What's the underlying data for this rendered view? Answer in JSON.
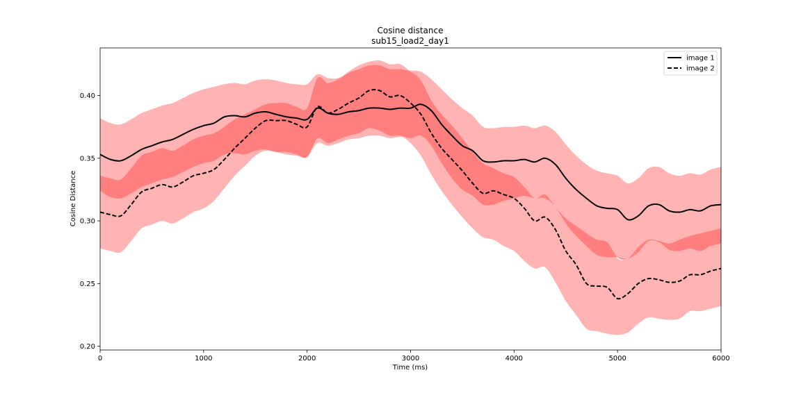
{
  "chart_data": {
    "type": "line",
    "title": "Cosine distance",
    "subtitle": "sub15_load2_day1",
    "xlabel": "Time (ms)",
    "ylabel": "Cosine Distance",
    "xlim": [
      0,
      6000
    ],
    "ylim": [
      0.197,
      0.438
    ],
    "xticks": [
      0,
      1000,
      2000,
      3000,
      4000,
      5000,
      6000
    ],
    "yticks": [
      0.2,
      0.25,
      0.3,
      0.35,
      0.4
    ],
    "ytick_labels": [
      "0.20",
      "0.25",
      "0.30",
      "0.35",
      "0.40"
    ],
    "grid": false,
    "legend_position": "top-right",
    "colors": {
      "outer_band": "#ffb3b3",
      "inner_band": "#ff7f7f",
      "line": "#000000"
    },
    "x": [
      0,
      100,
      200,
      300,
      400,
      500,
      600,
      700,
      800,
      900,
      1000,
      1100,
      1200,
      1300,
      1400,
      1500,
      1600,
      1700,
      1800,
      1900,
      2000,
      2100,
      2200,
      2300,
      2400,
      2500,
      2600,
      2700,
      2800,
      2900,
      3000,
      3100,
      3200,
      3300,
      3400,
      3500,
      3600,
      3700,
      3800,
      3900,
      4000,
      4100,
      4200,
      4300,
      4400,
      4500,
      4600,
      4700,
      4800,
      4900,
      5000,
      5100,
      5200,
      5300,
      5400,
      5500,
      5600,
      5700,
      5800,
      5900,
      6000
    ],
    "series": [
      {
        "name": "image 1",
        "style": "solid",
        "values": [
          0.353,
          0.349,
          0.348,
          0.352,
          0.357,
          0.36,
          0.363,
          0.365,
          0.369,
          0.373,
          0.376,
          0.378,
          0.383,
          0.384,
          0.383,
          0.386,
          0.387,
          0.385,
          0.383,
          0.382,
          0.381,
          0.39,
          0.386,
          0.385,
          0.387,
          0.388,
          0.39,
          0.39,
          0.389,
          0.39,
          0.39,
          0.393,
          0.388,
          0.377,
          0.368,
          0.36,
          0.356,
          0.348,
          0.347,
          0.348,
          0.348,
          0.349,
          0.347,
          0.35,
          0.345,
          0.334,
          0.325,
          0.318,
          0.312,
          0.31,
          0.309,
          0.301,
          0.304,
          0.312,
          0.313,
          0.308,
          0.307,
          0.309,
          0.308,
          0.312,
          0.313
        ],
        "band": {
          "outer_lower": [
            0.324,
            0.319,
            0.318,
            0.322,
            0.327,
            0.33,
            0.333,
            0.335,
            0.339,
            0.343,
            0.346,
            0.348,
            0.353,
            0.354,
            0.353,
            0.356,
            0.357,
            0.355,
            0.353,
            0.352,
            0.351,
            0.362,
            0.36,
            0.362,
            0.365,
            0.366,
            0.368,
            0.368,
            0.366,
            0.367,
            0.366,
            0.368,
            0.36,
            0.346,
            0.334,
            0.325,
            0.32,
            0.313,
            0.313,
            0.316,
            0.318,
            0.32,
            0.318,
            0.318,
            0.311,
            0.298,
            0.288,
            0.28,
            0.273,
            0.271,
            0.271,
            0.27,
            0.275,
            0.284,
            0.283,
            0.277,
            0.276,
            0.278,
            0.276,
            0.28,
            0.282
          ],
          "outer_upper": [
            0.382,
            0.378,
            0.377,
            0.381,
            0.386,
            0.389,
            0.392,
            0.394,
            0.398,
            0.402,
            0.405,
            0.407,
            0.409,
            0.41,
            0.409,
            0.412,
            0.413,
            0.412,
            0.41,
            0.409,
            0.409,
            0.417,
            0.414,
            0.414,
            0.418,
            0.421,
            0.424,
            0.424,
            0.421,
            0.421,
            0.42,
            0.419,
            0.413,
            0.405,
            0.397,
            0.39,
            0.384,
            0.375,
            0.374,
            0.375,
            0.375,
            0.376,
            0.374,
            0.376,
            0.371,
            0.361,
            0.352,
            0.345,
            0.34,
            0.338,
            0.336,
            0.33,
            0.334,
            0.342,
            0.343,
            0.338,
            0.336,
            0.338,
            0.337,
            0.341,
            0.343
          ]
        }
      },
      {
        "name": "image 2",
        "style": "dashed",
        "values": [
          0.307,
          0.305,
          0.304,
          0.313,
          0.323,
          0.326,
          0.329,
          0.327,
          0.331,
          0.336,
          0.338,
          0.341,
          0.349,
          0.358,
          0.366,
          0.374,
          0.38,
          0.38,
          0.38,
          0.377,
          0.375,
          0.391,
          0.386,
          0.389,
          0.394,
          0.398,
          0.404,
          0.404,
          0.399,
          0.4,
          0.394,
          0.385,
          0.37,
          0.358,
          0.349,
          0.34,
          0.33,
          0.322,
          0.324,
          0.321,
          0.318,
          0.31,
          0.3,
          0.303,
          0.293,
          0.276,
          0.265,
          0.25,
          0.248,
          0.247,
          0.238,
          0.242,
          0.25,
          0.254,
          0.253,
          0.251,
          0.252,
          0.257,
          0.257,
          0.26,
          0.262
        ],
        "band": {
          "outer_lower": [
            0.278,
            0.276,
            0.275,
            0.284,
            0.294,
            0.297,
            0.3,
            0.298,
            0.302,
            0.307,
            0.31,
            0.316,
            0.326,
            0.336,
            0.344,
            0.352,
            0.356,
            0.355,
            0.355,
            0.353,
            0.351,
            0.366,
            0.362,
            0.365,
            0.368,
            0.37,
            0.374,
            0.372,
            0.368,
            0.368,
            0.362,
            0.352,
            0.337,
            0.324,
            0.313,
            0.303,
            0.294,
            0.287,
            0.285,
            0.28,
            0.276,
            0.268,
            0.262,
            0.263,
            0.251,
            0.236,
            0.225,
            0.214,
            0.212,
            0.21,
            0.209,
            0.211,
            0.218,
            0.223,
            0.222,
            0.221,
            0.222,
            0.228,
            0.228,
            0.23,
            0.232
          ],
          "outer_upper": [
            0.336,
            0.334,
            0.333,
            0.342,
            0.352,
            0.355,
            0.358,
            0.356,
            0.36,
            0.365,
            0.368,
            0.37,
            0.375,
            0.381,
            0.385,
            0.389,
            0.393,
            0.394,
            0.394,
            0.391,
            0.39,
            0.414,
            0.41,
            0.413,
            0.419,
            0.424,
            0.427,
            0.428,
            0.425,
            0.425,
            0.419,
            0.412,
            0.396,
            0.385,
            0.376,
            0.366,
            0.355,
            0.346,
            0.342,
            0.338,
            0.335,
            0.327,
            0.318,
            0.321,
            0.311,
            0.302,
            0.296,
            0.29,
            0.285,
            0.283,
            0.27,
            0.27,
            0.279,
            0.285,
            0.284,
            0.282,
            0.285,
            0.288,
            0.29,
            0.292,
            0.294
          ]
        }
      }
    ]
  }
}
